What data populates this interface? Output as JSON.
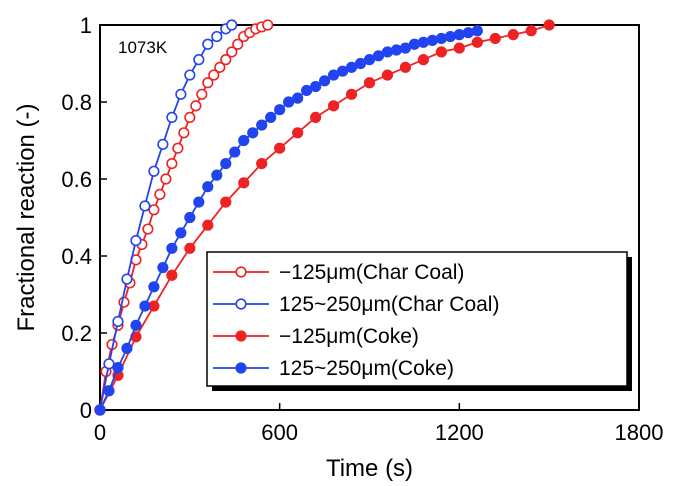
{
  "chart_data": {
    "type": "scatter",
    "annotation": "1073K",
    "xlabel": "Time (s)",
    "ylabel": "Fractional reaction (-)",
    "xlim": [
      0,
      1800
    ],
    "ylim": [
      0,
      1
    ],
    "xticks": [
      "0",
      "600",
      "1200",
      "1800"
    ],
    "yticks": [
      "0",
      "0.2",
      "0.4",
      "0.6",
      "0.8",
      "1"
    ],
    "legend_position": "lower-right",
    "series": [
      {
        "name": "−125μm(Char Coal)",
        "color": "#ee2222",
        "marker": "open",
        "x": [
          0,
          20,
          40,
          60,
          80,
          100,
          120,
          140,
          160,
          180,
          200,
          220,
          240,
          260,
          280,
          300,
          320,
          340,
          360,
          380,
          400,
          420,
          440,
          460,
          480,
          500,
          520,
          540,
          560
        ],
        "y": [
          0,
          0.1,
          0.17,
          0.22,
          0.28,
          0.33,
          0.39,
          0.43,
          0.47,
          0.52,
          0.56,
          0.6,
          0.64,
          0.68,
          0.72,
          0.76,
          0.79,
          0.82,
          0.85,
          0.87,
          0.89,
          0.91,
          0.93,
          0.95,
          0.97,
          0.98,
          0.99,
          0.995,
          1.0
        ]
      },
      {
        "name": "125~250μm(Char Coal)",
        "color": "#2244ee",
        "marker": "open",
        "x": [
          0,
          30,
          60,
          90,
          120,
          150,
          180,
          210,
          240,
          270,
          300,
          330,
          360,
          390,
          420,
          440
        ],
        "y": [
          0,
          0.12,
          0.23,
          0.34,
          0.44,
          0.53,
          0.62,
          0.69,
          0.76,
          0.82,
          0.87,
          0.91,
          0.95,
          0.97,
          0.99,
          1.0
        ]
      },
      {
        "name": "−125μm(Coke)",
        "color": "#ee2222",
        "marker": "filled",
        "x": [
          0,
          60,
          120,
          180,
          240,
          300,
          360,
          420,
          480,
          540,
          600,
          660,
          720,
          780,
          840,
          900,
          960,
          1020,
          1080,
          1140,
          1200,
          1260,
          1320,
          1380,
          1440,
          1500
        ],
        "y": [
          0,
          0.09,
          0.19,
          0.27,
          0.35,
          0.42,
          0.48,
          0.54,
          0.59,
          0.64,
          0.68,
          0.72,
          0.76,
          0.79,
          0.82,
          0.85,
          0.87,
          0.89,
          0.91,
          0.93,
          0.94,
          0.955,
          0.965,
          0.975,
          0.985,
          1.0
        ]
      },
      {
        "name": "125~250μm(Coke)",
        "color": "#2244ee",
        "marker": "filled",
        "x": [
          0,
          30,
          60,
          90,
          120,
          150,
          180,
          210,
          240,
          270,
          300,
          330,
          360,
          390,
          420,
          450,
          480,
          510,
          540,
          570,
          600,
          630,
          660,
          690,
          720,
          750,
          780,
          810,
          840,
          870,
          900,
          930,
          960,
          990,
          1020,
          1050,
          1080,
          1110,
          1140,
          1170,
          1200,
          1230,
          1260
        ],
        "y": [
          0,
          0.05,
          0.11,
          0.16,
          0.22,
          0.27,
          0.32,
          0.37,
          0.42,
          0.46,
          0.5,
          0.54,
          0.58,
          0.61,
          0.64,
          0.67,
          0.7,
          0.72,
          0.74,
          0.76,
          0.78,
          0.8,
          0.81,
          0.83,
          0.84,
          0.855,
          0.87,
          0.88,
          0.89,
          0.9,
          0.91,
          0.92,
          0.93,
          0.935,
          0.94,
          0.95,
          0.955,
          0.96,
          0.965,
          0.97,
          0.975,
          0.98,
          0.985
        ]
      }
    ]
  }
}
